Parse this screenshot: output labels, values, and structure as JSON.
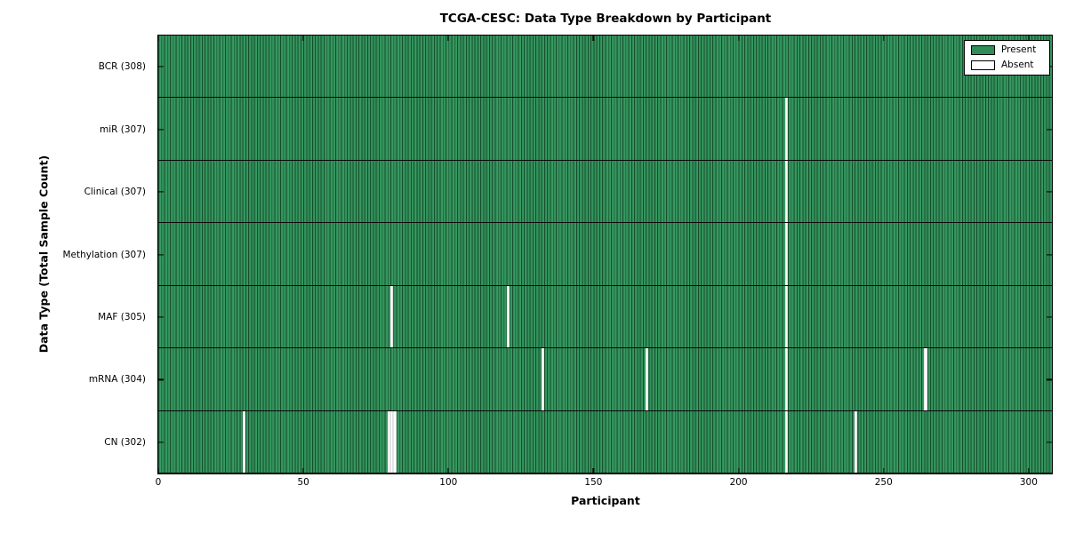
{
  "title": "TCGA-CESC: Data Type Breakdown by Participant",
  "chart_data": {
    "type": "heatmap",
    "title": "TCGA-CESC: Data Type Breakdown by Participant",
    "xlabel": "Participant",
    "ylabel": "Data Type (Total Sample Count)",
    "xlim": [
      0,
      308
    ],
    "x_ticks": [
      0,
      50,
      100,
      150,
      200,
      250,
      300
    ],
    "n_participants": 308,
    "grid": "row-separators",
    "legend_position": "upper right",
    "legend": [
      {
        "label": "Present",
        "color": "#2e8e57"
      },
      {
        "label": "Absent",
        "color": "#ffffff"
      }
    ],
    "colors": {
      "present_fill": "#2e8e57",
      "present_edge": "#174f2e",
      "absent_fill": "#ffffff",
      "spine": "#000000"
    },
    "rows": [
      {
        "label": "BCR (308)",
        "data_type": "BCR",
        "total_sample_count": 308,
        "absent_participants": []
      },
      {
        "label": "miR (307)",
        "data_type": "miR",
        "total_sample_count": 307,
        "absent_participants": [
          216
        ]
      },
      {
        "label": "Clinical (307)",
        "data_type": "Clinical",
        "total_sample_count": 307,
        "absent_participants": [
          216
        ]
      },
      {
        "label": "Methylation (307)",
        "data_type": "Methylation",
        "total_sample_count": 307,
        "absent_participants": [
          216
        ]
      },
      {
        "label": "MAF (305)",
        "data_type": "MAF",
        "total_sample_count": 305,
        "absent_participants": [
          80,
          120,
          216
        ]
      },
      {
        "label": "mRNA (304)",
        "data_type": "mRNA",
        "total_sample_count": 304,
        "absent_participants": [
          132,
          168,
          216,
          264
        ]
      },
      {
        "label": "CN (302)",
        "data_type": "CN",
        "total_sample_count": 302,
        "absent_participants": [
          29,
          79,
          80,
          81,
          216,
          240
        ]
      }
    ]
  }
}
